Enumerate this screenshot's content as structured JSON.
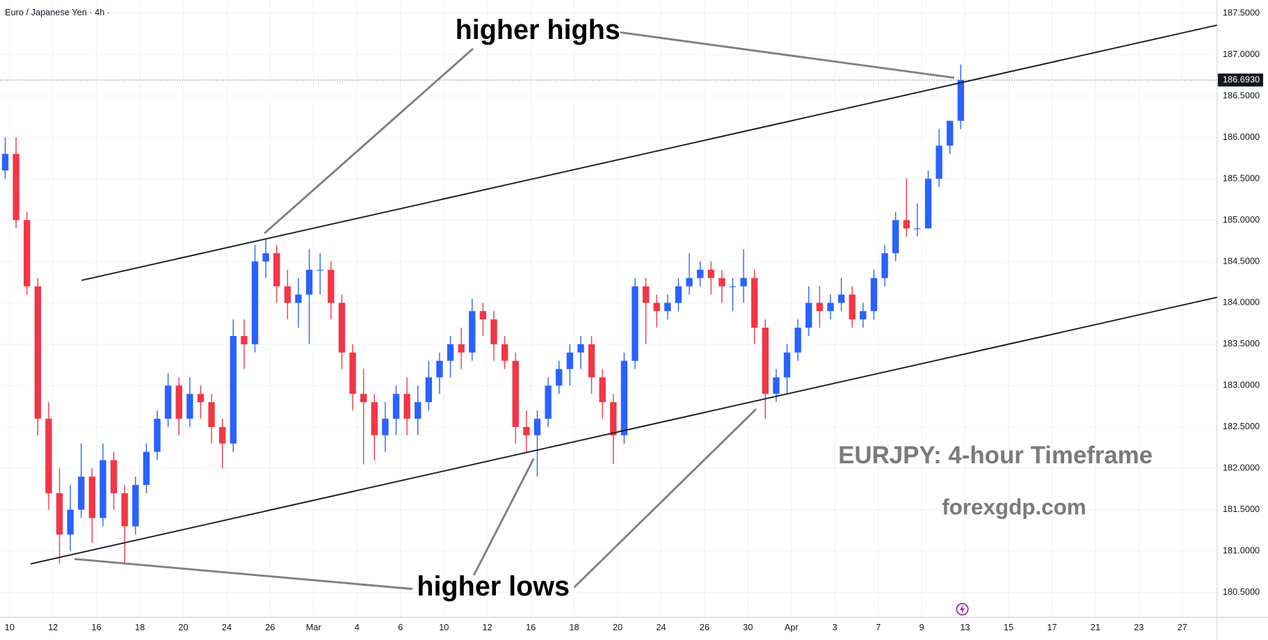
{
  "chart_data": {
    "type": "candlestick",
    "title": "Euro / Japanese Yen · 4h ·",
    "annotations": {
      "highs": "higher highs",
      "lows": "higher lows",
      "caption": "EURJPY: 4-hour Timeframe",
      "site": "forexgdp.com"
    },
    "up_color": "#2962ff",
    "down_color": "#f23645",
    "xlim": [
      -0.22,
      27.8
    ],
    "ylim": [
      180.2,
      187.66
    ],
    "xticks": [
      {
        "value": 0,
        "label": "10"
      },
      {
        "value": 1,
        "label": "12"
      },
      {
        "value": 2,
        "label": "16"
      },
      {
        "value": 3,
        "label": "18"
      },
      {
        "value": 4,
        "label": "20"
      },
      {
        "value": 5,
        "label": "24"
      },
      {
        "value": 6,
        "label": "26"
      },
      {
        "value": 7,
        "label": "Mar"
      },
      {
        "value": 8,
        "label": "4"
      },
      {
        "value": 9,
        "label": "6"
      },
      {
        "value": 10,
        "label": "10"
      },
      {
        "value": 11,
        "label": "12"
      },
      {
        "value": 12,
        "label": "16"
      },
      {
        "value": 13,
        "label": "18"
      },
      {
        "value": 14,
        "label": "20"
      },
      {
        "value": 15,
        "label": "24"
      },
      {
        "value": 16,
        "label": "26"
      },
      {
        "value": 17,
        "label": "30"
      },
      {
        "value": 18,
        "label": "Apr"
      },
      {
        "value": 19,
        "label": "3"
      },
      {
        "value": 20,
        "label": "7"
      },
      {
        "value": 21,
        "label": "9"
      },
      {
        "value": 22,
        "label": "13"
      },
      {
        "value": 23,
        "label": "15"
      },
      {
        "value": 24,
        "label": "17"
      },
      {
        "value": 25,
        "label": "21"
      },
      {
        "value": 26,
        "label": "23"
      },
      {
        "value": 27,
        "label": "27"
      }
    ],
    "yticks": [
      {
        "value": 180.5,
        "label": "180.5000"
      },
      {
        "value": 181,
        "label": "181.0000"
      },
      {
        "value": 181.5,
        "label": "181.5000"
      },
      {
        "value": 182,
        "label": "182.0000"
      },
      {
        "value": 182.5,
        "label": "182.5000"
      },
      {
        "value": 183,
        "label": "183.0000"
      },
      {
        "value": 183.5,
        "label": "183.5000"
      },
      {
        "value": 184,
        "label": "184.0000"
      },
      {
        "value": 184.5,
        "label": "184.5000"
      },
      {
        "value": 185,
        "label": "185.0000"
      },
      {
        "value": 185.5,
        "label": "185.5000"
      },
      {
        "value": 186,
        "label": "186.0000"
      },
      {
        "value": 186.5,
        "label": "186.5000"
      },
      {
        "value": 187,
        "label": "187.0000"
      },
      {
        "value": 187.5,
        "label": "187.5000"
      }
    ],
    "last_price": {
      "value": 186.693,
      "label": "186.6930"
    },
    "x": [
      -0.1,
      0.15,
      0.4,
      0.65,
      0.9,
      1.15,
      1.4,
      1.65,
      1.9,
      2.15,
      2.4,
      2.65,
      2.9,
      3.15,
      3.4,
      3.65,
      3.9,
      4.15,
      4.4,
      4.65,
      4.9,
      5.15,
      5.4,
      5.65,
      5.9,
      6.15,
      6.4,
      6.65,
      6.9,
      7.15,
      7.4,
      7.65,
      7.9,
      8.15,
      8.4,
      8.65,
      8.9,
      9.15,
      9.4,
      9.65,
      9.9,
      10.15,
      10.4,
      10.65,
      10.9,
      11.15,
      11.4,
      11.65,
      11.9,
      12.15,
      12.4,
      12.65,
      12.9,
      13.15,
      13.4,
      13.65,
      13.9,
      14.15,
      14.4,
      14.65,
      14.9,
      15.15,
      15.4,
      15.65,
      15.9,
      16.15,
      16.4,
      16.65,
      16.9,
      17.15,
      17.4,
      17.65,
      17.9,
      18.15,
      18.4,
      18.65,
      18.9,
      19.15,
      19.4,
      19.65,
      19.9,
      20.15,
      20.4,
      20.65,
      20.9,
      21.15,
      21.4,
      21.65,
      21.9
    ],
    "candles": [
      [
        185.6,
        186.0,
        185.5,
        185.8
      ],
      [
        185.8,
        186.0,
        184.9,
        185.0
      ],
      [
        185.0,
        185.1,
        184.1,
        184.2
      ],
      [
        184.2,
        184.3,
        182.4,
        182.6
      ],
      [
        182.6,
        182.8,
        181.5,
        181.7
      ],
      [
        181.7,
        182.0,
        180.85,
        181.2
      ],
      [
        181.2,
        181.8,
        181.0,
        181.5
      ],
      [
        181.5,
        182.3,
        181.4,
        181.9
      ],
      [
        181.9,
        182.0,
        181.1,
        181.4
      ],
      [
        181.4,
        182.3,
        181.3,
        182.1
      ],
      [
        182.1,
        182.2,
        181.5,
        181.7
      ],
      [
        181.7,
        181.8,
        180.85,
        181.3
      ],
      [
        181.3,
        181.9,
        181.2,
        181.8
      ],
      [
        181.8,
        182.3,
        181.7,
        182.2
      ],
      [
        182.2,
        182.7,
        182.1,
        182.6
      ],
      [
        182.6,
        183.15,
        182.5,
        183.0
      ],
      [
        183.0,
        183.1,
        182.4,
        182.6
      ],
      [
        182.6,
        183.1,
        182.5,
        182.9
      ],
      [
        182.9,
        183.0,
        182.6,
        182.8
      ],
      [
        182.8,
        182.9,
        182.3,
        182.5
      ],
      [
        182.5,
        182.6,
        182.0,
        182.3
      ],
      [
        182.3,
        183.8,
        182.2,
        183.6
      ],
      [
        183.6,
        183.8,
        183.2,
        183.5
      ],
      [
        183.5,
        184.7,
        183.4,
        184.5
      ],
      [
        184.5,
        184.78,
        184.3,
        184.6
      ],
      [
        184.6,
        184.7,
        184.0,
        184.2
      ],
      [
        184.2,
        184.4,
        183.8,
        184.0
      ],
      [
        184.0,
        184.3,
        183.7,
        184.1
      ],
      [
        184.1,
        184.65,
        183.5,
        184.4
      ],
      [
        184.4,
        184.6,
        184.1,
        184.4
      ],
      [
        184.4,
        184.5,
        183.8,
        184.0
      ],
      [
        184.0,
        184.1,
        183.2,
        183.4
      ],
      [
        183.4,
        183.5,
        182.7,
        182.9
      ],
      [
        182.9,
        183.2,
        182.05,
        182.8
      ],
      [
        182.8,
        182.9,
        182.1,
        182.4
      ],
      [
        182.4,
        182.8,
        182.2,
        182.6
      ],
      [
        182.6,
        183.0,
        182.4,
        182.9
      ],
      [
        182.9,
        183.1,
        182.4,
        182.6
      ],
      [
        182.6,
        183.0,
        182.4,
        182.8
      ],
      [
        182.8,
        183.3,
        182.7,
        183.1
      ],
      [
        183.1,
        183.4,
        182.9,
        183.3
      ],
      [
        183.3,
        183.6,
        183.1,
        183.5
      ],
      [
        183.5,
        183.7,
        183.2,
        183.4
      ],
      [
        183.4,
        184.05,
        183.3,
        183.9
      ],
      [
        183.9,
        184.0,
        183.6,
        183.8
      ],
      [
        183.8,
        183.9,
        183.3,
        183.5
      ],
      [
        183.5,
        183.6,
        183.2,
        183.3
      ],
      [
        183.3,
        183.4,
        182.3,
        182.5
      ],
      [
        182.5,
        182.7,
        182.2,
        182.4
      ],
      [
        182.4,
        182.7,
        181.9,
        182.6
      ],
      [
        182.6,
        183.1,
        182.5,
        183.0
      ],
      [
        183.0,
        183.3,
        182.9,
        183.2
      ],
      [
        183.2,
        183.5,
        183.0,
        183.4
      ],
      [
        183.4,
        183.6,
        183.2,
        183.5
      ],
      [
        183.5,
        183.6,
        182.9,
        183.1
      ],
      [
        183.1,
        183.2,
        182.6,
        182.8
      ],
      [
        182.8,
        182.9,
        182.05,
        182.4
      ],
      [
        182.4,
        183.4,
        182.3,
        183.3
      ],
      [
        183.3,
        184.3,
        183.2,
        184.2
      ],
      [
        184.2,
        184.3,
        183.5,
        184.0
      ],
      [
        184.0,
        184.1,
        183.7,
        183.9
      ],
      [
        183.9,
        184.1,
        183.8,
        184.0
      ],
      [
        184.0,
        184.3,
        183.9,
        184.2
      ],
      [
        184.2,
        184.6,
        184.1,
        184.3
      ],
      [
        184.3,
        184.5,
        184.2,
        184.4
      ],
      [
        184.4,
        184.5,
        184.1,
        184.3
      ],
      [
        184.3,
        184.4,
        184.0,
        184.2
      ],
      [
        184.2,
        184.3,
        183.9,
        184.2
      ],
      [
        184.2,
        184.65,
        184.0,
        184.3
      ],
      [
        184.3,
        184.4,
        183.5,
        183.7
      ],
      [
        183.7,
        183.8,
        182.6,
        182.9
      ],
      [
        182.9,
        183.2,
        182.8,
        183.1
      ],
      [
        183.1,
        183.5,
        182.9,
        183.4
      ],
      [
        183.4,
        183.8,
        183.3,
        183.7
      ],
      [
        183.7,
        184.2,
        183.6,
        184.0
      ],
      [
        184.0,
        184.2,
        183.7,
        183.9
      ],
      [
        183.9,
        184.1,
        183.8,
        184.0
      ],
      [
        184.0,
        184.3,
        183.9,
        184.1
      ],
      [
        184.1,
        184.2,
        183.7,
        183.8
      ],
      [
        183.8,
        184.0,
        183.7,
        183.9
      ],
      [
        183.9,
        184.4,
        183.8,
        184.3
      ],
      [
        184.3,
        184.7,
        184.2,
        184.6
      ],
      [
        184.6,
        185.1,
        184.5,
        185.0
      ],
      [
        185.0,
        185.5,
        184.8,
        184.9
      ],
      [
        184.9,
        185.2,
        184.8,
        184.9
      ],
      [
        184.9,
        185.6,
        184.9,
        185.5
      ],
      [
        185.5,
        186.1,
        185.4,
        185.9
      ],
      [
        185.9,
        186.2,
        185.8,
        186.2
      ],
      [
        186.2,
        186.88,
        186.1,
        186.693
      ]
    ]
  }
}
